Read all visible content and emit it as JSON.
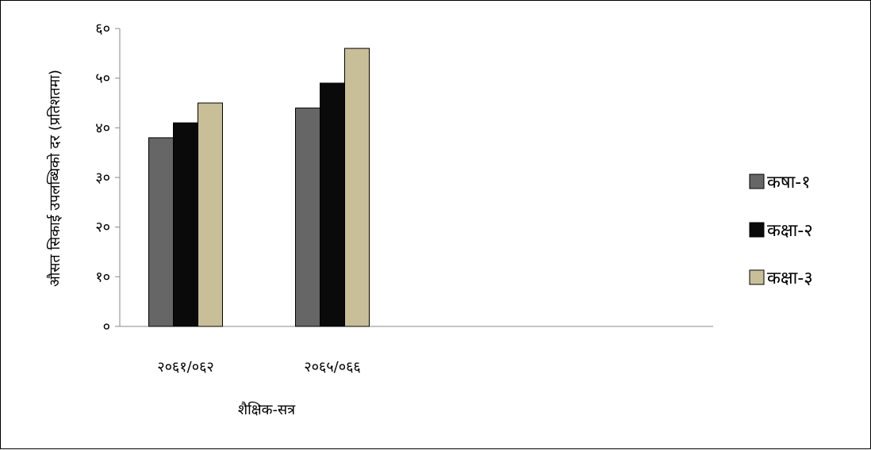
{
  "chart_data": {
    "type": "bar",
    "categories": [
      "२०६१/०६२",
      "२०६५/०६६"
    ],
    "series": [
      {
        "name": "कषा-१",
        "values": [
          38,
          44
        ],
        "color": "#666666"
      },
      {
        "name": "कक्षा-२",
        "values": [
          41,
          49
        ],
        "color": "#0a0a0a"
      },
      {
        "name": "कक्षा-३",
        "values": [
          45,
          56
        ],
        "color": "#c8bf98"
      }
    ],
    "xlabel": "शैक्षिक-सत्र",
    "ylabel": "औसत सिकाई उपलब्धिको दर (प्रतिशतमा)",
    "ylim": [
      0,
      60
    ],
    "yticks": [
      0,
      10,
      20,
      30,
      40,
      50,
      60
    ],
    "ytick_labels": [
      "०",
      "१०",
      "२०",
      "३०",
      "४०",
      "५०",
      "६०"
    ],
    "grid": false,
    "legend_position": "right"
  }
}
